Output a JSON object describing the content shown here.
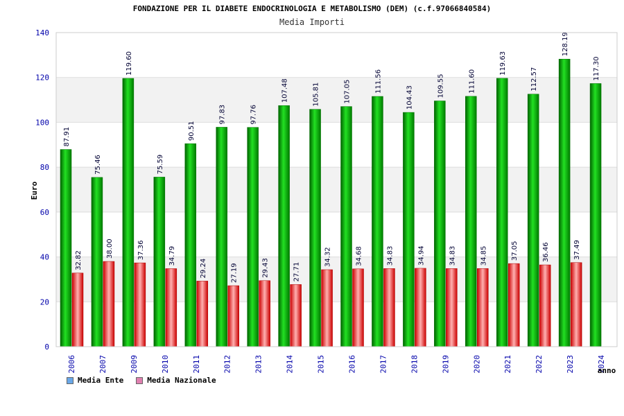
{
  "chart_data": {
    "type": "bar",
    "title": "FONDAZIONE PER IL DIABETE ENDOCRINOLOGIA E METABOLISMO (DEM) (c.f.97066840584)",
    "subtitle": "Media Importi",
    "ylabel": "Euro",
    "xlabel": "anno",
    "ylim": [
      0,
      140
    ],
    "yticks": [
      0,
      20,
      40,
      60,
      80,
      100,
      120,
      140
    ],
    "grid": true,
    "legend_position": "bottom-left",
    "categories": [
      "2006",
      "2007",
      "2009",
      "2010",
      "2011",
      "2012",
      "2013",
      "2014",
      "2015",
      "2016",
      "2017",
      "2018",
      "2019",
      "2020",
      "2021",
      "2022",
      "2023",
      "2024"
    ],
    "series": [
      {
        "name": "Media Ente",
        "color": "#00b000",
        "legend_color": "#6aa8e8",
        "values": [
          87.91,
          75.46,
          119.6,
          75.59,
          90.51,
          97.83,
          97.76,
          107.48,
          105.81,
          107.05,
          111.56,
          104.43,
          109.55,
          111.6,
          119.63,
          112.57,
          128.19,
          117.3
        ],
        "labels": [
          "87.91",
          "75.46",
          "119.60",
          "75.59",
          "90.51",
          "97.83",
          "97.76",
          "107.48",
          "105.81",
          "107.05",
          "111.56",
          "104.43",
          "109.55",
          "111.60",
          "119.63",
          "112.57",
          "128.19",
          "117.30"
        ]
      },
      {
        "name": "Media Nazionale",
        "color": "#e00000",
        "legend_color": "#e080b0",
        "values": [
          32.82,
          38.0,
          37.36,
          34.79,
          29.24,
          27.19,
          29.43,
          27.71,
          34.32,
          34.68,
          34.83,
          34.94,
          34.83,
          34.85,
          37.05,
          36.46,
          37.49,
          null
        ],
        "labels": [
          "32.82",
          "38.00",
          "37.36",
          "34.79",
          "29.24",
          "27.19",
          "29.43",
          "27.71",
          "34.32",
          "34.68",
          "34.83",
          "34.94",
          "34.83",
          "34.85",
          "37.05",
          "36.46",
          "37.49",
          ""
        ]
      }
    ]
  }
}
